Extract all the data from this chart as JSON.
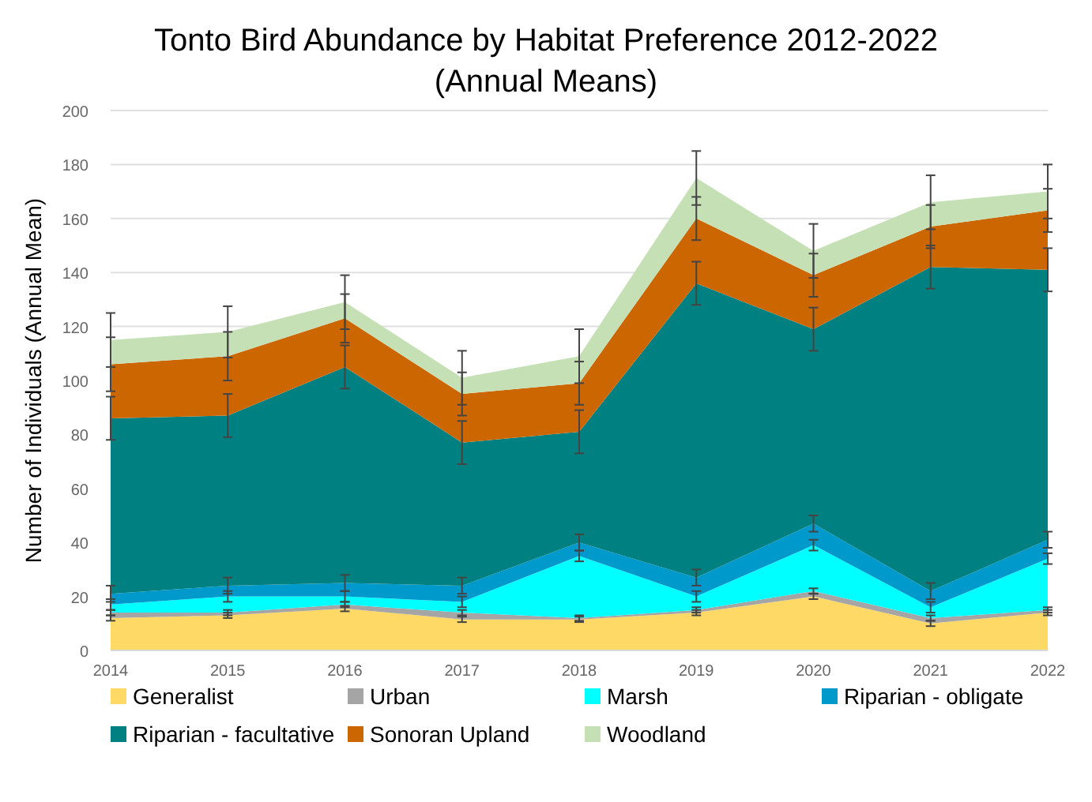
{
  "chart_data": {
    "type": "area",
    "stacked": true,
    "title": "Tonto Bird Abundance by Habitat Preference 2012-2022",
    "subtitle": "(Annual Means)",
    "ylabel": "Number of Individuals (Annual Mean)",
    "categories": [
      "2014",
      "2015",
      "2016",
      "2017",
      "2018",
      "2019",
      "2020",
      "2021",
      "2022"
    ],
    "ylim": [
      0,
      200
    ],
    "yticks": [
      0,
      20,
      40,
      60,
      80,
      100,
      120,
      140,
      160,
      180,
      200
    ],
    "grid": "y",
    "legend": "bottom",
    "series": [
      {
        "name": "Generalist",
        "color": "#ffd966",
        "values": [
          12,
          13,
          15.5,
          11.5,
          11.5,
          14,
          20,
          10,
          14
        ],
        "errors": [
          1,
          1,
          1,
          1,
          1,
          1,
          1,
          1,
          1
        ]
      },
      {
        "name": "Urban",
        "color": "#a5a5a5",
        "values": [
          2,
          1,
          1.5,
          2.5,
          0.5,
          1,
          2,
          2,
          1
        ],
        "errors": [
          1,
          1,
          1,
          1,
          1,
          1,
          1,
          1,
          1
        ]
      },
      {
        "name": "Marsh",
        "color": "#00ffff",
        "values": [
          3,
          6,
          3,
          4,
          23,
          5,
          17,
          4,
          19
        ],
        "errors": [
          2,
          2,
          2,
          2,
          2,
          2,
          2,
          2,
          2
        ]
      },
      {
        "name": "Riparian - obligate",
        "color": "#0099cc",
        "values": [
          4,
          4,
          5,
          6,
          5,
          7,
          8,
          6,
          7
        ],
        "errors": [
          3,
          3,
          3,
          3,
          3,
          3,
          3,
          3,
          3
        ]
      },
      {
        "name": "Riparian - facultative",
        "color": "#008080",
        "values": [
          65,
          63,
          80,
          53,
          41,
          109,
          72,
          120,
          100
        ],
        "errors": [
          8,
          8,
          8,
          8,
          8,
          8,
          8,
          8,
          8
        ]
      },
      {
        "name": "Sonoran Upland",
        "color": "#cc6600",
        "values": [
          20,
          22,
          18,
          18,
          18,
          24,
          20,
          15,
          22
        ],
        "errors": [
          10,
          9,
          9,
          8,
          8,
          8,
          8,
          8,
          8
        ]
      },
      {
        "name": "Woodland",
        "color": "#c5e0b4",
        "values": [
          9,
          9,
          6,
          6,
          10,
          15,
          9,
          9,
          7
        ],
        "errors": [
          10,
          9.5,
          10,
          10,
          10,
          10,
          10,
          10,
          10
        ]
      }
    ]
  }
}
